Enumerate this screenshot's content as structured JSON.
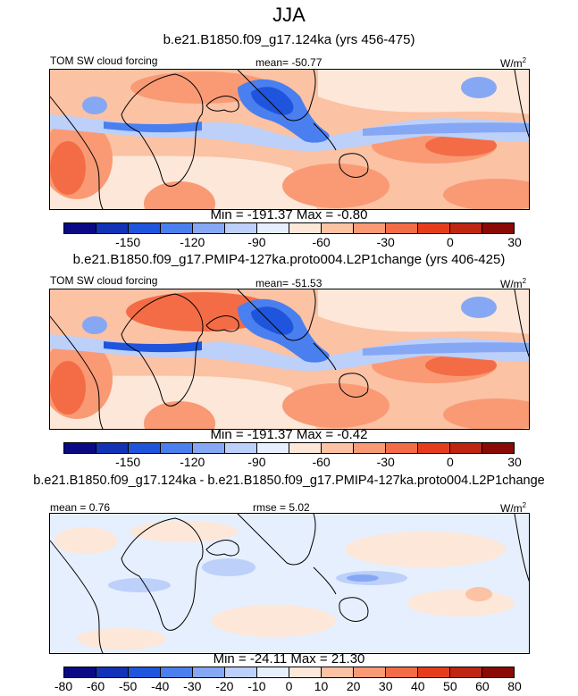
{
  "figure": {
    "season": "JJA",
    "panel1": {
      "case_title": "b.e21.B1850.f09_g17.124ka (yrs 456-475)",
      "variable": "TOM SW cloud forcing",
      "mean_text": "mean= -50.77",
      "units": "W/m",
      "units_sup": "2",
      "minmax_text": "Min = -191.37 Max =  -0.80"
    },
    "panel2": {
      "case_title": "b.e21.B1850.f09_g17.PMIP4-127ka.proto004.L2P1change (yrs 406-425)",
      "variable": "TOM SW cloud forcing",
      "mean_text": "mean= -51.53",
      "units": "W/m",
      "units_sup": "2",
      "minmax_text": "Min = -191.37 Max =  -0.42"
    },
    "panel3": {
      "case_title": "b.e21.B1850.f09_g17.124ka - b.e21.B1850.f09_g17.PMIP4-127ka.proto004.L2P1change",
      "mean_text": "mean =   0.76",
      "rmse_text": "rmse =   5.02",
      "units": "W/m",
      "units_sup": "2",
      "minmax_text": "Min = -24.11 Max =  21.30"
    }
  },
  "colorbar_abs": {
    "colors": [
      "#0a0a85",
      "#1232b8",
      "#1f55dd",
      "#4a7fef",
      "#86a8f4",
      "#bcd0fa",
      "#e6effd",
      "#fde7d8",
      "#fbc2a4",
      "#f99a75",
      "#f46c45",
      "#e53d1c",
      "#bf2612",
      "#8b0a05"
    ],
    "ticks": [
      "-150",
      "-120",
      "-90",
      "-60",
      "-30",
      "0",
      "30"
    ]
  },
  "colorbar_diff": {
    "colors": [
      "#0a0a85",
      "#1232b8",
      "#1f55dd",
      "#4a7fef",
      "#86a8f4",
      "#bcd0fa",
      "#e6effd",
      "#fde7d8",
      "#fbc2a4",
      "#f99a75",
      "#f46c45",
      "#e53d1c",
      "#bf2612",
      "#8b0a05"
    ],
    "ticks": [
      "-80",
      "-60",
      "-50",
      "-40",
      "-30",
      "-20",
      "-10",
      "0",
      "10",
      "20",
      "30",
      "40",
      "50",
      "60",
      "80"
    ]
  }
}
